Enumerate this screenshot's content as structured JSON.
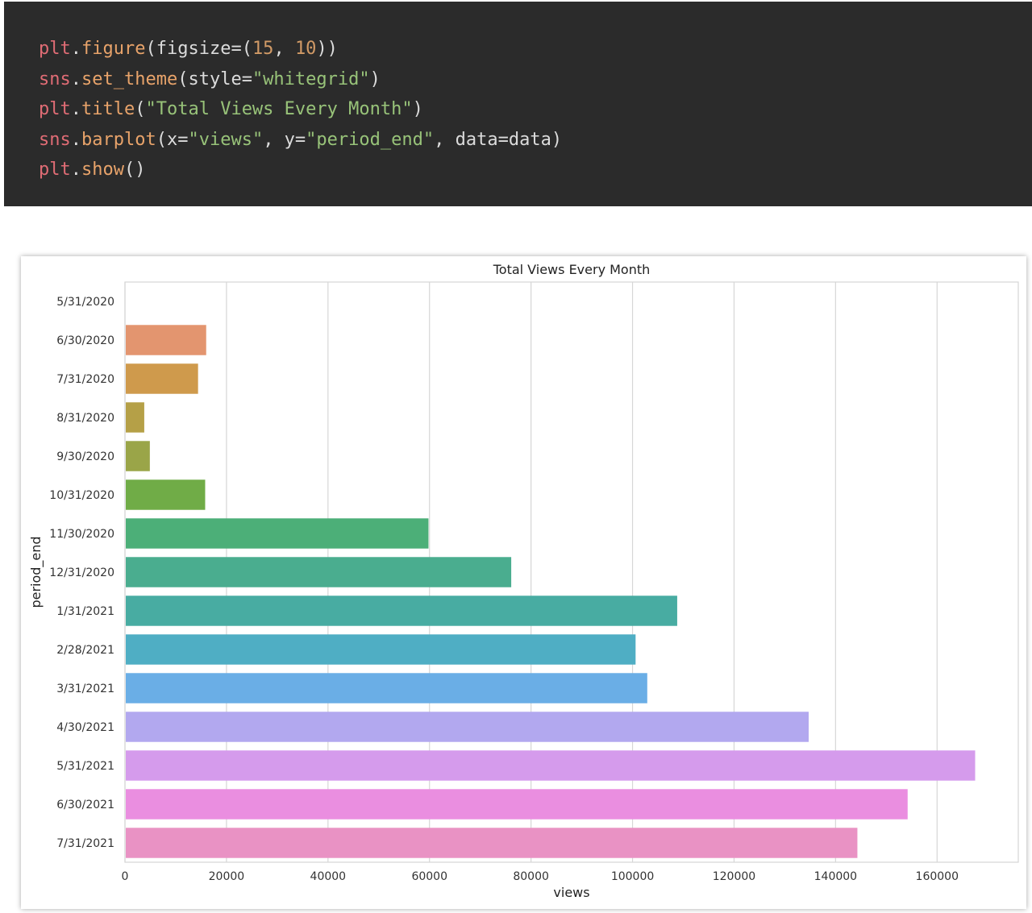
{
  "code": {
    "lines": [
      [
        {
          "t": "plt",
          "c": "obj"
        },
        {
          "t": ".",
          "c": "punc"
        },
        {
          "t": "figure",
          "c": "fn"
        },
        {
          "t": "(figsize=(",
          "c": "punc"
        },
        {
          "t": "15",
          "c": "num"
        },
        {
          "t": ", ",
          "c": "punc"
        },
        {
          "t": "10",
          "c": "num"
        },
        {
          "t": "))",
          "c": "punc"
        }
      ],
      [
        {
          "t": "sns",
          "c": "obj"
        },
        {
          "t": ".",
          "c": "punc"
        },
        {
          "t": "set_theme",
          "c": "fn"
        },
        {
          "t": "(style=",
          "c": "punc"
        },
        {
          "t": "\"whitegrid\"",
          "c": "str"
        },
        {
          "t": ")",
          "c": "punc"
        }
      ],
      [
        {
          "t": "plt",
          "c": "obj"
        },
        {
          "t": ".",
          "c": "punc"
        },
        {
          "t": "title",
          "c": "fn"
        },
        {
          "t": "(",
          "c": "punc"
        },
        {
          "t": "\"Total Views Every Month\"",
          "c": "str"
        },
        {
          "t": ")",
          "c": "punc"
        }
      ],
      [
        {
          "t": "sns",
          "c": "obj"
        },
        {
          "t": ".",
          "c": "punc"
        },
        {
          "t": "barplot",
          "c": "fn"
        },
        {
          "t": "(x=",
          "c": "punc"
        },
        {
          "t": "\"views\"",
          "c": "str"
        },
        {
          "t": ", y=",
          "c": "punc"
        },
        {
          "t": "\"period_end\"",
          "c": "str"
        },
        {
          "t": ", data=data)",
          "c": "punc"
        }
      ],
      [
        {
          "t": "plt",
          "c": "obj"
        },
        {
          "t": ".",
          "c": "punc"
        },
        {
          "t": "show",
          "c": "fn"
        },
        {
          "t": "()",
          "c": "punc"
        }
      ]
    ]
  },
  "chart_data": {
    "type": "bar",
    "orientation": "horizontal",
    "title": "Total Views Every Month",
    "xlabel": "views",
    "ylabel": "period_end",
    "xlim": [
      0,
      176000
    ],
    "xticks": [
      0,
      20000,
      40000,
      60000,
      80000,
      100000,
      120000,
      140000,
      160000
    ],
    "grid": true,
    "categories": [
      "5/31/2020",
      "6/30/2020",
      "7/31/2020",
      "8/31/2020",
      "9/30/2020",
      "10/31/2020",
      "11/30/2020",
      "12/31/2020",
      "1/31/2021",
      "2/28/2021",
      "3/31/2021",
      "4/30/2021",
      "5/31/2021",
      "6/30/2021",
      "7/31/2021"
    ],
    "values": [
      0,
      16000,
      14400,
      3800,
      4900,
      15800,
      59800,
      76100,
      108800,
      100600,
      102900,
      134700,
      167500,
      154200,
      144300
    ],
    "colors": [
      "#f18d7a",
      "#e3956f",
      "#cf9a4c",
      "#b5a047",
      "#9aa548",
      "#70ac47",
      "#4caf78",
      "#4aad8f",
      "#48aca2",
      "#4faec4",
      "#6aaee6",
      "#b2a8ef",
      "#d59bec",
      "#ea8ee0",
      "#e992c4"
    ]
  }
}
